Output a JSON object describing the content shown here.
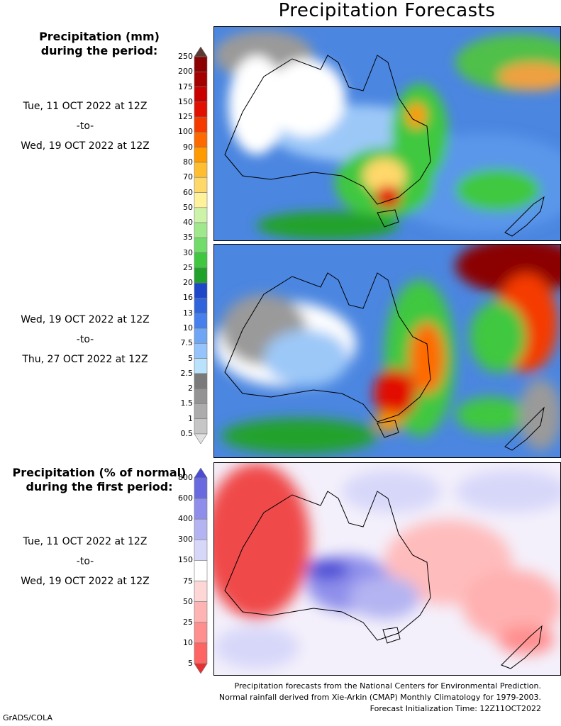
{
  "title": "Precipitation Forecasts",
  "mm_panel": {
    "title_line1": "Precipitation (mm)",
    "title_line2": "during the period:"
  },
  "period1": {
    "start": "Tue, 11 OCT 2022 at 12Z",
    "sep": "-to-",
    "end": "Wed, 19 OCT 2022 at 12Z"
  },
  "period2": {
    "start": "Wed, 19 OCT 2022 at 12Z",
    "sep": "-to-",
    "end": "Thu, 27 OCT 2022 at 12Z"
  },
  "pct_panel": {
    "title_line1": "Precipitation (% of normal)",
    "title_line2": "during the first period:"
  },
  "period3": {
    "start": "Tue, 11 OCT 2022 at 12Z",
    "sep": "-to-",
    "end": "Wed, 19 OCT 2022 at 12Z"
  },
  "mm_colorbar": {
    "labels": [
      "250",
      "200",
      "175",
      "150",
      "125",
      "100",
      "90",
      "80",
      "70",
      "60",
      "50",
      "40",
      "35",
      "30",
      "25",
      "20",
      "16",
      "13",
      "10",
      "7.5",
      "5",
      "2.5",
      "2",
      "1.5",
      "1",
      "0.5"
    ],
    "colors": [
      "#5a3a34",
      "#8b0000",
      "#a50000",
      "#c80000",
      "#e21000",
      "#f53a00",
      "#ff6a00",
      "#ff9a00",
      "#ffbe30",
      "#ffd86a",
      "#fff29a",
      "#cdf3a8",
      "#a0e88c",
      "#72dc6a",
      "#3fc83f",
      "#20a22a",
      "#1e46c8",
      "#2f64dc",
      "#4680ec",
      "#6ea6f5",
      "#94c4fb",
      "#b9e3fd",
      "#7a7a7a",
      "#939393",
      "#acacac",
      "#c6c6c6",
      "#e2e2e2"
    ]
  },
  "pct_colorbar": {
    "labels": [
      "800",
      "600",
      "400",
      "300",
      "150",
      "75",
      "50",
      "25",
      "10",
      "5"
    ],
    "colors": [
      "#4b4bd6",
      "#6a6ae0",
      "#8f8feb",
      "#b4b4f2",
      "#d7d7f9",
      "#ffffff",
      "#ffd6d6",
      "#ffb4b4",
      "#ff8e8e",
      "#ff6464",
      "#e43030"
    ]
  },
  "credits": {
    "line1": "Precipitation forecasts from the National Centers for Environmental Prediction.",
    "line2": "Normal rainfall derived from Xie-Arkin (CMAP) Monthly Climatology for 1979-2003.",
    "line3": "Forecast Initialization Time: 12Z11OCT2022"
  },
  "footer": "GrADS/COLA"
}
